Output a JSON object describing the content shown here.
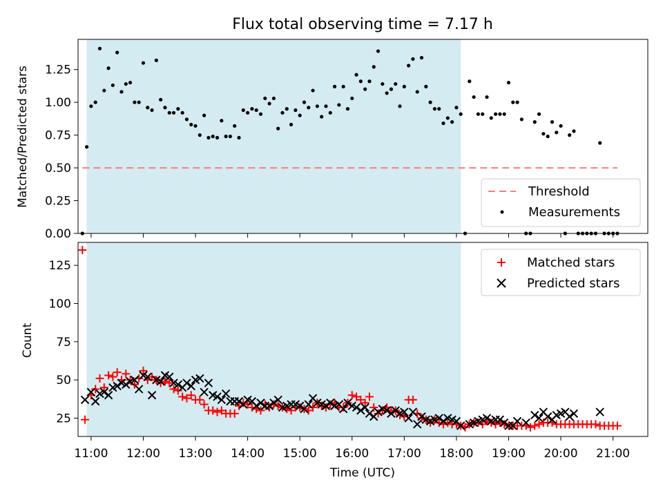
{
  "chart_data": [
    {
      "type": "scatter",
      "title": "Flux total observing time = 7.17 h",
      "ylabel": "Matched/Predicted stars",
      "xlabel": "",
      "xlim": [
        "10:45",
        "21:40"
      ],
      "ylim": [
        0,
        1.48
      ],
      "x_ticks": [
        "11:00",
        "12:00",
        "13:00",
        "14:00",
        "15:00",
        "16:00",
        "17:00",
        "18:00",
        "19:00",
        "20:00",
        "21:00"
      ],
      "x_tick_labels_visible": false,
      "y_ticks": [
        0.0,
        0.25,
        0.5,
        0.75,
        1.0,
        1.25
      ],
      "y_tick_labels": [
        "0.00",
        "0.25",
        "0.50",
        "0.75",
        "1.00",
        "1.25"
      ],
      "shaded_region": {
        "x_start": "10:55",
        "x_end": "18:05",
        "color": "#d4ebf1"
      },
      "legend_position": "lower right",
      "series": [
        {
          "name": "Threshold",
          "kind": "line",
          "style": "dashed",
          "color": "#f27f7f",
          "x": [
            "10:50",
            "21:05"
          ],
          "y": [
            0.5,
            0.5
          ]
        },
        {
          "name": "Measurements",
          "kind": "scatter",
          "marker": "dot",
          "color": "#000000",
          "x": [
            "10:50",
            "10:55",
            "11:00",
            "11:05",
            "11:10",
            "11:15",
            "11:20",
            "11:25",
            "11:30",
            "11:35",
            "11:40",
            "11:45",
            "11:50",
            "11:55",
            "12:00",
            "12:05",
            "12:10",
            "12:15",
            "12:20",
            "12:25",
            "12:30",
            "12:35",
            "12:40",
            "12:45",
            "12:50",
            "12:55",
            "13:00",
            "13:05",
            "13:10",
            "13:15",
            "13:20",
            "13:25",
            "13:30",
            "13:35",
            "13:40",
            "13:45",
            "13:50",
            "13:55",
            "14:00",
            "14:05",
            "14:10",
            "14:15",
            "14:20",
            "14:25",
            "14:30",
            "14:35",
            "14:40",
            "14:45",
            "14:50",
            "14:55",
            "15:00",
            "15:05",
            "15:10",
            "15:15",
            "15:20",
            "15:25",
            "15:30",
            "15:35",
            "15:40",
            "15:45",
            "15:50",
            "15:55",
            "16:00",
            "16:05",
            "16:10",
            "16:15",
            "16:20",
            "16:25",
            "16:30",
            "16:35",
            "16:40",
            "16:45",
            "16:50",
            "16:55",
            "17:00",
            "17:05",
            "17:10",
            "17:15",
            "17:20",
            "17:25",
            "17:30",
            "17:35",
            "17:40",
            "17:45",
            "17:50",
            "17:55",
            "18:00",
            "18:05",
            "18:10",
            "18:15",
            "18:20",
            "18:25",
            "18:30",
            "18:35",
            "18:40",
            "18:45",
            "18:50",
            "18:55",
            "19:00",
            "19:05",
            "19:10",
            "19:15",
            "19:20",
            "19:25",
            "19:30",
            "19:35",
            "19:40",
            "19:45",
            "19:50",
            "19:55",
            "20:00",
            "20:05",
            "20:10",
            "20:15",
            "20:20",
            "20:25",
            "20:30",
            "20:35",
            "20:40",
            "20:45",
            "20:50",
            "20:55",
            "21:00",
            "21:05"
          ],
          "y": [
            0.0,
            0.66,
            0.97,
            1.0,
            1.41,
            1.09,
            1.26,
            1.13,
            1.38,
            1.08,
            1.14,
            1.15,
            1.0,
            1.0,
            1.3,
            0.96,
            0.94,
            1.32,
            1.02,
            0.96,
            0.92,
            0.92,
            0.95,
            0.92,
            0.87,
            0.83,
            0.82,
            0.75,
            0.9,
            0.73,
            0.74,
            0.73,
            0.86,
            0.74,
            0.74,
            0.82,
            0.73,
            0.94,
            0.92,
            0.95,
            0.94,
            0.91,
            1.03,
            0.99,
            1.03,
            0.8,
            0.92,
            0.95,
            0.83,
            0.94,
            0.9,
            1.0,
            0.96,
            1.09,
            0.97,
            0.89,
            0.97,
            0.92,
            1.12,
            0.98,
            1.12,
            0.95,
            1.03,
            1.21,
            1.16,
            1.1,
            1.16,
            1.27,
            1.39,
            1.14,
            1.07,
            1.1,
            1.14,
            0.97,
            1.12,
            1.28,
            1.33,
            1.08,
            1.34,
            1.12,
            1.0,
            0.95,
            0.95,
            0.84,
            0.88,
            0.85,
            0.96,
            0.91,
            0.0,
            1.16,
            1.04,
            0.91,
            0.91,
            1.04,
            0.88,
            0.91,
            0.91,
            0.91,
            1.15,
            1.0,
            1.0,
            0.87,
            0.0,
            0.0,
            0.85,
            0.91,
            0.76,
            0.74,
            0.85,
            0.77,
            0.82,
            0.0,
            0.75,
            0.78,
            0.0,
            0.0,
            0.0,
            0.0,
            0.0,
            0.69,
            0.0,
            0.0,
            0.0,
            0.0
          ]
        }
      ]
    },
    {
      "type": "scatter",
      "title": "",
      "ylabel": "Count",
      "xlabel": "Time (UTC)",
      "xlim": [
        "10:45",
        "21:40"
      ],
      "ylim": [
        13,
        140
      ],
      "x_ticks": [
        "11:00",
        "12:00",
        "13:00",
        "14:00",
        "15:00",
        "16:00",
        "17:00",
        "18:00",
        "19:00",
        "20:00",
        "21:00"
      ],
      "x_tick_labels": [
        "11:00",
        "12:00",
        "13:00",
        "14:00",
        "15:00",
        "16:00",
        "17:00",
        "18:00",
        "19:00",
        "20:00",
        "21:00"
      ],
      "y_ticks": [
        25,
        50,
        75,
        100,
        125
      ],
      "y_tick_labels": [
        "25",
        "50",
        "75",
        "100",
        "125"
      ],
      "shaded_region": {
        "x_start": "10:55",
        "x_end": "18:05",
        "color": "#d4ebf1"
      },
      "legend_position": "upper right",
      "series": [
        {
          "name": "Matched stars",
          "kind": "scatter",
          "marker": "plus",
          "color": "#ff0000",
          "x": [
            "10:50",
            "10:53",
            "11:00",
            "11:05",
            "11:10",
            "11:15",
            "11:20",
            "11:25",
            "11:30",
            "11:35",
            "11:40",
            "11:45",
            "11:50",
            "11:55",
            "12:00",
            "12:05",
            "12:10",
            "12:15",
            "12:20",
            "12:25",
            "12:30",
            "12:35",
            "12:40",
            "12:45",
            "12:50",
            "12:55",
            "13:00",
            "13:05",
            "13:10",
            "13:15",
            "13:20",
            "13:25",
            "13:30",
            "13:35",
            "13:40",
            "13:45",
            "13:50",
            "13:55",
            "14:00",
            "14:05",
            "14:10",
            "14:15",
            "14:20",
            "14:25",
            "14:30",
            "14:35",
            "14:40",
            "14:45",
            "14:50",
            "14:55",
            "15:00",
            "15:05",
            "15:10",
            "15:15",
            "15:20",
            "15:25",
            "15:30",
            "15:35",
            "15:40",
            "15:45",
            "15:50",
            "15:55",
            "16:00",
            "16:05",
            "16:10",
            "16:15",
            "16:20",
            "16:25",
            "16:30",
            "16:35",
            "16:40",
            "16:45",
            "16:50",
            "16:55",
            "17:00",
            "17:05",
            "17:10",
            "17:15",
            "17:20",
            "17:25",
            "17:30",
            "17:35",
            "17:40",
            "17:45",
            "17:50",
            "17:55",
            "18:00",
            "18:05",
            "18:10",
            "18:15",
            "18:20",
            "18:25",
            "18:30",
            "18:35",
            "18:40",
            "18:45",
            "18:50",
            "18:55",
            "19:00",
            "19:05",
            "19:10",
            "19:15",
            "19:20",
            "19:25",
            "19:30",
            "19:35",
            "19:40",
            "19:45",
            "19:50",
            "19:55",
            "20:00",
            "20:05",
            "20:10",
            "20:15",
            "20:20",
            "20:25",
            "20:30",
            "20:35",
            "20:40",
            "20:45",
            "20:50",
            "20:55",
            "21:00",
            "21:05"
          ],
          "y": [
            135,
            24,
            40,
            44,
            51,
            45,
            53,
            52,
            55,
            50,
            54,
            50,
            47,
            51,
            56,
            50,
            52,
            50,
            48,
            49,
            48,
            44,
            43,
            39,
            38,
            40,
            37,
            37,
            34,
            30,
            30,
            29,
            30,
            28,
            28,
            28,
            33,
            35,
            34,
            32,
            31,
            30,
            34,
            32,
            34,
            33,
            32,
            31,
            30,
            32,
            32,
            31,
            30,
            32,
            35,
            33,
            32,
            34,
            35,
            32,
            32,
            35,
            40,
            39,
            37,
            35,
            39,
            32,
            28,
            30,
            32,
            30,
            30,
            27,
            26,
            37,
            37,
            28,
            25,
            24,
            22,
            24,
            22,
            21,
            22,
            21,
            21,
            20,
            19,
            21,
            22,
            22,
            21,
            23,
            22,
            21,
            22,
            21,
            20,
            20,
            20,
            20,
            20,
            19,
            20,
            21,
            22,
            22,
            22,
            21,
            21,
            21,
            21,
            21,
            21,
            21,
            21,
            21,
            21,
            20,
            20,
            20,
            20,
            20
          ]
        },
        {
          "name": "Predicted stars",
          "kind": "scatter",
          "marker": "x",
          "color": "#000000",
          "x": [
            "10:53",
            "11:00",
            "11:05",
            "11:10",
            "11:15",
            "11:20",
            "11:25",
            "11:30",
            "11:35",
            "11:40",
            "11:45",
            "11:50",
            "11:55",
            "12:00",
            "12:05",
            "12:10",
            "12:15",
            "12:20",
            "12:25",
            "12:30",
            "12:35",
            "12:40",
            "12:45",
            "12:50",
            "12:55",
            "13:00",
            "13:05",
            "13:10",
            "13:15",
            "13:20",
            "13:25",
            "13:30",
            "13:35",
            "13:40",
            "13:45",
            "13:50",
            "13:55",
            "14:00",
            "14:05",
            "14:10",
            "14:15",
            "14:20",
            "14:25",
            "14:30",
            "14:35",
            "14:40",
            "14:45",
            "14:50",
            "14:55",
            "15:00",
            "15:05",
            "15:10",
            "15:15",
            "15:20",
            "15:25",
            "15:30",
            "15:35",
            "15:40",
            "15:45",
            "15:50",
            "15:55",
            "16:00",
            "16:05",
            "16:10",
            "16:15",
            "16:20",
            "16:25",
            "16:30",
            "16:35",
            "16:40",
            "16:45",
            "16:50",
            "16:55",
            "17:00",
            "17:05",
            "17:10",
            "17:15",
            "17:20",
            "17:25",
            "17:30",
            "17:35",
            "17:40",
            "17:45",
            "17:50",
            "17:55",
            "18:00",
            "18:05",
            "18:15",
            "18:20",
            "18:25",
            "18:30",
            "18:35",
            "18:40",
            "18:45",
            "18:50",
            "18:55",
            "19:00",
            "19:05",
            "19:10",
            "19:20",
            "19:30",
            "19:35",
            "19:40",
            "19:45",
            "19:50",
            "19:55",
            "20:00",
            "20:05",
            "20:10",
            "20:15",
            "20:45"
          ],
          "y": [
            37,
            42,
            36,
            41,
            42,
            40,
            45,
            46,
            48,
            47,
            49,
            50,
            44,
            53,
            52,
            40,
            50,
            49,
            53,
            52,
            48,
            47,
            45,
            48,
            46,
            50,
            51,
            42,
            48,
            40,
            39,
            37,
            41,
            36,
            36,
            36,
            34,
            37,
            36,
            33,
            35,
            33,
            33,
            35,
            37,
            32,
            33,
            34,
            34,
            33,
            31,
            34,
            38,
            35,
            34,
            33,
            35,
            33,
            34,
            31,
            35,
            33,
            32,
            30,
            32,
            28,
            26,
            29,
            31,
            30,
            28,
            30,
            28,
            29,
            25,
            29,
            21,
            26,
            24,
            23,
            24,
            25,
            23,
            25,
            24,
            23,
            20,
            21,
            22,
            23,
            24,
            25,
            23,
            24,
            24,
            22,
            20,
            20,
            23,
            22,
            27,
            25,
            29,
            26,
            24,
            27,
            28,
            29,
            26,
            28,
            29
          ]
        }
      ]
    }
  ]
}
